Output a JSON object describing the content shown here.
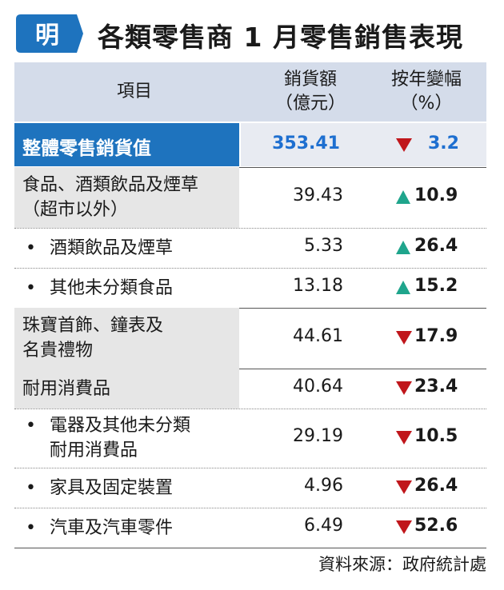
{
  "logo_text": "明",
  "title": "各類零售商 1 月零售銷售表現",
  "header": {
    "item": "項目",
    "value_line1": "銷貨額",
    "value_line2": "（億元）",
    "change_line1": "按年變幅",
    "change_line2": "（%）"
  },
  "highlight": {
    "label": "整體零售銷貨值",
    "value": "353.41",
    "change": "3.2",
    "direction": "down"
  },
  "colors": {
    "blue": "#1e73be",
    "up": "#1fa58c",
    "down": "#c0161b"
  },
  "chart_data": {
    "type": "table",
    "title": "各類零售商 1 月零售銷售表現",
    "columns": [
      "項目",
      "銷貨額（億元）",
      "按年變幅（%）"
    ],
    "rows": [
      {
        "label_lines": [
          "食品、酒類飲品及煙草",
          "（超市以外）"
        ],
        "sub": false,
        "value": "39.43",
        "change": "10.9",
        "direction": "up"
      },
      {
        "label_lines": [
          "酒類飲品及煙草"
        ],
        "sub": true,
        "value": "5.33",
        "change": "26.4",
        "direction": "up"
      },
      {
        "label_lines": [
          "其他未分類食品"
        ],
        "sub": true,
        "value": "13.18",
        "change": "15.2",
        "direction": "up"
      },
      {
        "label_lines": [
          "珠寶首飾、鐘表及",
          "名貴禮物"
        ],
        "sub": false,
        "value": "44.61",
        "change": "17.9",
        "direction": "down"
      },
      {
        "label_lines": [
          "耐用消費品"
        ],
        "sub": false,
        "value": "40.64",
        "change": "23.4",
        "direction": "down"
      },
      {
        "label_lines": [
          "電器及其他未分類",
          "耐用消費品"
        ],
        "sub": true,
        "value": "29.19",
        "change": "10.5",
        "direction": "down"
      },
      {
        "label_lines": [
          "家具及固定裝置"
        ],
        "sub": true,
        "value": "4.96",
        "change": "26.4",
        "direction": "down"
      },
      {
        "label_lines": [
          "汽車及汽車零件"
        ],
        "sub": true,
        "value": "6.49",
        "change": "52.6",
        "direction": "down"
      }
    ]
  },
  "source": "資料來源：政府統計處"
}
